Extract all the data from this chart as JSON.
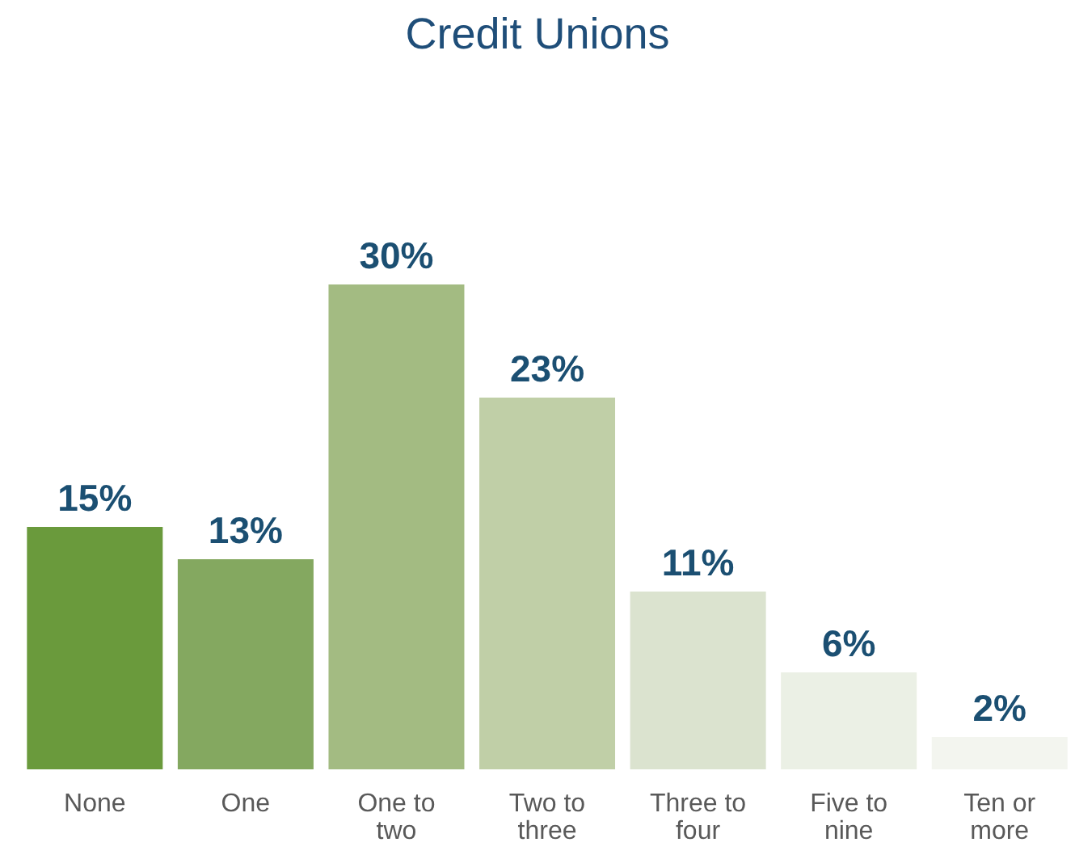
{
  "chart_data": {
    "type": "bar",
    "title": "Credit Unions",
    "categories": [
      "None",
      "One",
      "One to two",
      "Two to three",
      "Three to four",
      "Five to nine",
      "Ten or more"
    ],
    "values": [
      15,
      13,
      30,
      23,
      11,
      6,
      2
    ],
    "colors": [
      "#6a9a3c",
      "#84a860",
      "#a3bb82",
      "#c0cfa7",
      "#dbe3cf",
      "#ebf0e5",
      "#f3f5ef"
    ],
    "value_labels": [
      "15%",
      "13%",
      "30%",
      "23%",
      "11%",
      "6%",
      "2%"
    ]
  }
}
